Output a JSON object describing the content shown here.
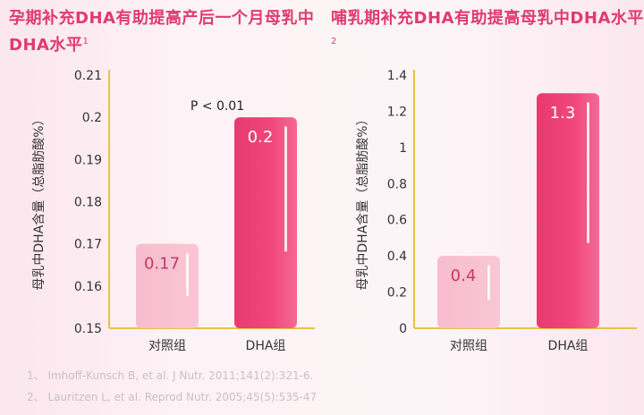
{
  "chart_data": [
    {
      "type": "bar",
      "title": "孕期补充DHA有助提高产后一个月母乳中DHA水平",
      "title_ref": "1",
      "ylabel": "母乳中DHA含量（总脂肪酸%）",
      "categories": [
        "对照组",
        "DHA组"
      ],
      "values": [
        0.17,
        0.2
      ],
      "value_labels": [
        "0.17",
        "0.2"
      ],
      "ylim": [
        0.15,
        0.21
      ],
      "yticks": [
        "0.15",
        "0.16",
        "0.17",
        "0.18",
        "0.19",
        "0.2",
        "0.21"
      ],
      "annotation": "P < 0.01",
      "colors": {
        "control": "#f9c6d5",
        "dha": "#f0477c",
        "axis": "#e8c23f"
      }
    },
    {
      "type": "bar",
      "title": "哺乳期补充DHA有助提高母乳中DHA水平",
      "title_ref": "2",
      "ylabel": "母乳中DHA含量（总脂肪酸%）",
      "categories": [
        "对照组",
        "DHA组"
      ],
      "values": [
        0.4,
        1.3
      ],
      "value_labels": [
        "0.4",
        "1.3"
      ],
      "ylim": [
        0,
        1.4
      ],
      "yticks": [
        "0",
        "0.2",
        "0.4",
        "0.6",
        "0.8",
        "1",
        "1.2",
        "1.4"
      ],
      "colors": {
        "control": "#f9c6d5",
        "dha": "#f0477c",
        "axis": "#e8c23f"
      }
    }
  ],
  "references": [
    "1、 Imhoff-Kunsch B, et al. J Nutr. 2011;141(2):321-6.",
    "2、 Lauritzen L, et al. Reprod Nutr. 2005;45(5):535-47"
  ]
}
